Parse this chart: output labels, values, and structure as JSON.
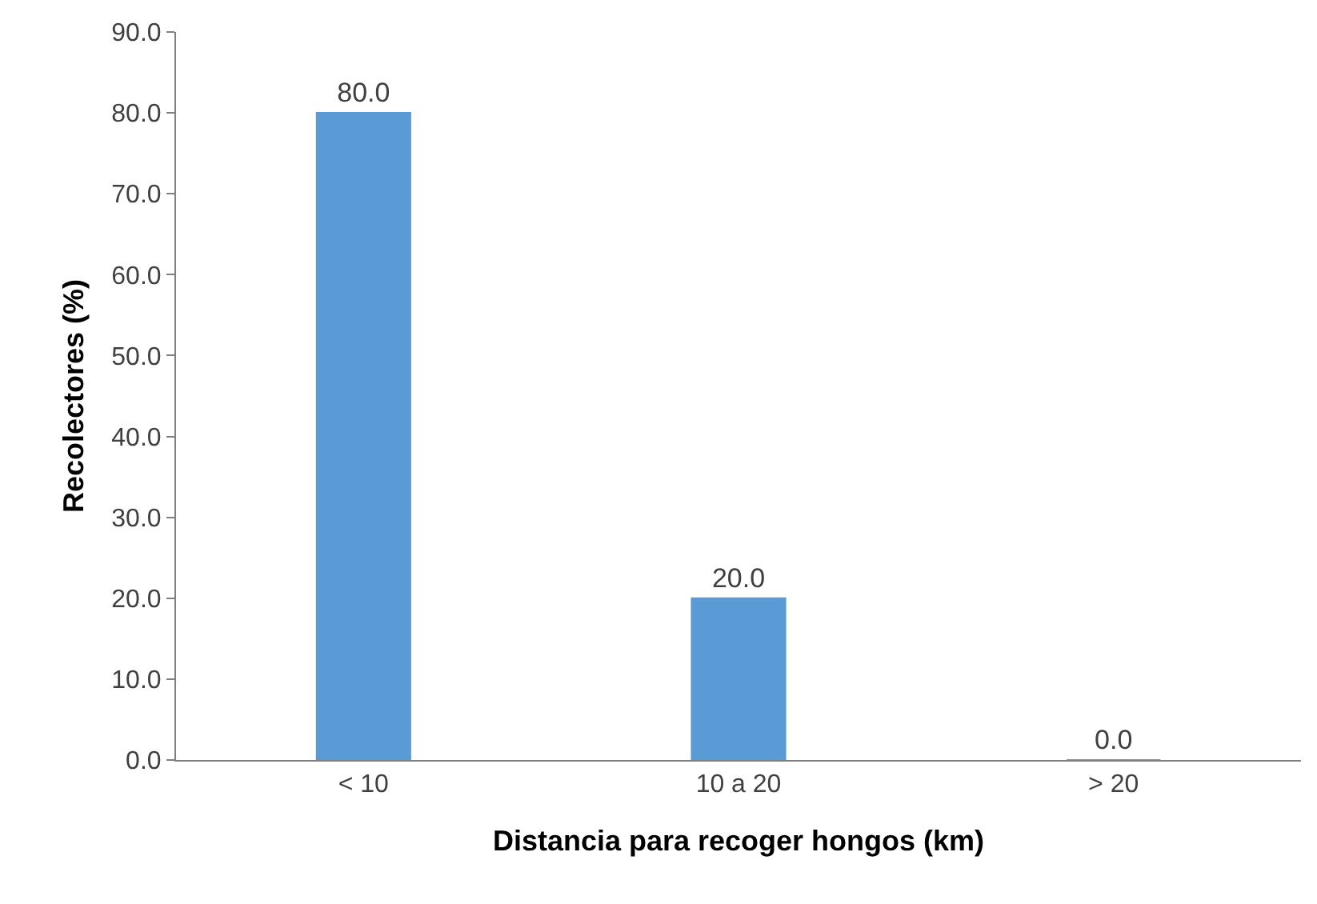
{
  "chart_data": {
    "type": "bar",
    "xlabel": "Distancia para recoger hongos (km)",
    "ylabel": "Recolectores (%)",
    "categories": [
      "< 10",
      "10 a 20",
      "> 20"
    ],
    "values": [
      80.0,
      20.0,
      0.0
    ],
    "value_labels": [
      "80.0",
      "20.0",
      "0.0"
    ],
    "color": "#5b9bd5",
    "ylim": [
      0,
      90
    ],
    "yticks": [
      {
        "value": 0,
        "label": "0.0"
      },
      {
        "value": 10,
        "label": "10.0"
      },
      {
        "value": 20,
        "label": "20.0"
      },
      {
        "value": 30,
        "label": "30.0"
      },
      {
        "value": 40,
        "label": "40.0"
      },
      {
        "value": 50,
        "label": "50.0"
      },
      {
        "value": 60,
        "label": "60.0"
      },
      {
        "value": 70,
        "label": "70.0"
      },
      {
        "value": 80,
        "label": "80.0"
      },
      {
        "value": 90,
        "label": "90.0"
      }
    ],
    "tick_labels": "xy"
  }
}
